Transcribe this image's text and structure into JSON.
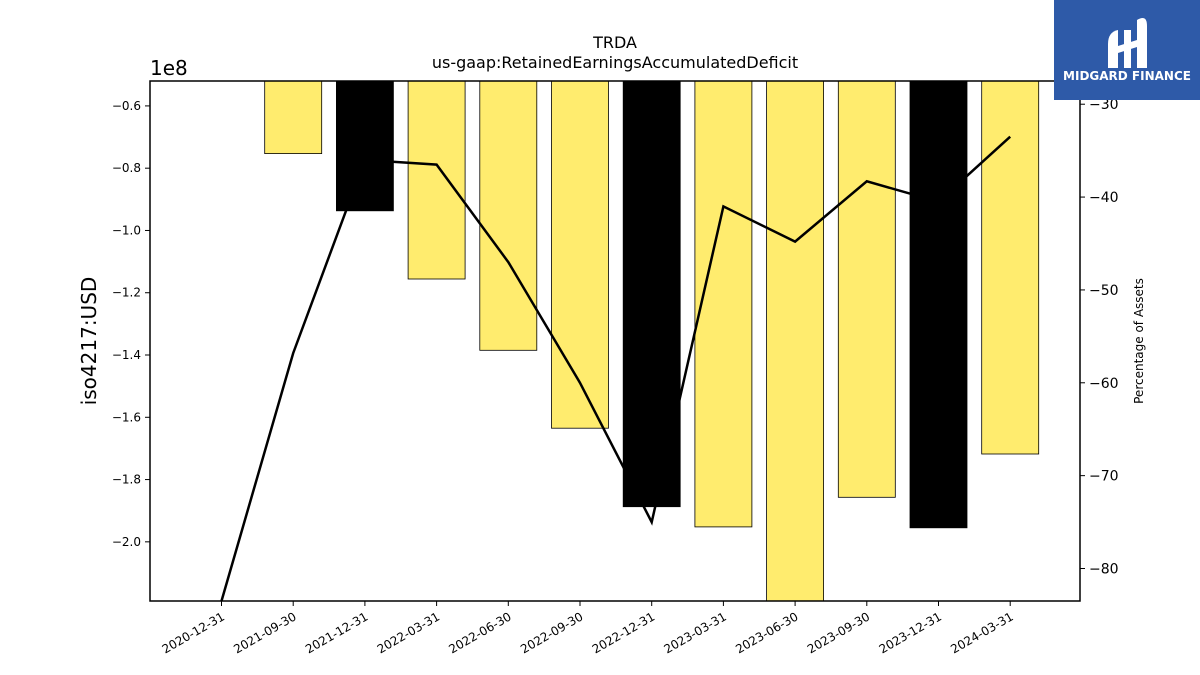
{
  "logo": {
    "text": "MIDGARD FINANCE"
  },
  "chart_data": {
    "type": "bar",
    "title": "TRDA",
    "subtitle": "us-gaap:RetainedEarningsAccumulatedDeficit",
    "ylabel": "iso4217:USD",
    "y_offset_label": "1e8",
    "y2label": "Percentage of Assets",
    "categories": [
      "2020-12-31",
      "2021-09-30",
      "2021-12-31",
      "2022-03-31",
      "2022-06-30",
      "2022-09-30",
      "2022-12-31",
      "2023-03-31",
      "2023-06-30",
      "2023-09-30",
      "2023-12-31",
      "2024-03-31"
    ],
    "values": [
      null,
      -0.753,
      -0.937,
      -1.156,
      -1.385,
      -1.635,
      -1.887,
      -1.952,
      -2.2,
      -1.857,
      -1.955,
      -1.718
    ],
    "bar_colors": [
      "#ffec6e",
      "#ffec6e",
      "#000000",
      "#ffec6e",
      "#ffec6e",
      "#ffec6e",
      "#000000",
      "#ffec6e",
      "#ffec6e",
      "#ffec6e",
      "#000000",
      "#ffec6e"
    ],
    "ylim": [
      -2.19,
      -0.52
    ],
    "yticks": [
      "−0.6",
      "−0.8",
      "−1.0",
      "−1.2",
      "−1.4",
      "−1.6",
      "−1.8",
      "−2.0"
    ],
    "ytick_values": [
      -0.6,
      -0.8,
      -1.0,
      -1.2,
      -1.4,
      -1.6,
      -1.8,
      -2.0
    ],
    "line_series": {
      "name": "Percentage of Assets",
      "values": [
        -83.5,
        -56.8,
        -36.0,
        -36.5,
        -47.0,
        -60.0,
        -75.0,
        -41.0,
        -44.8,
        -38.3,
        -40.5,
        -33.5
      ]
    },
    "y2lim": [
      -83.5,
      -27.5
    ],
    "y2ticks": [
      "−30",
      "−40",
      "−50",
      "−60",
      "−70",
      "−80"
    ],
    "y2tick_values": [
      -30,
      -40,
      -50,
      -60,
      -70,
      -80
    ],
    "grid": false
  }
}
